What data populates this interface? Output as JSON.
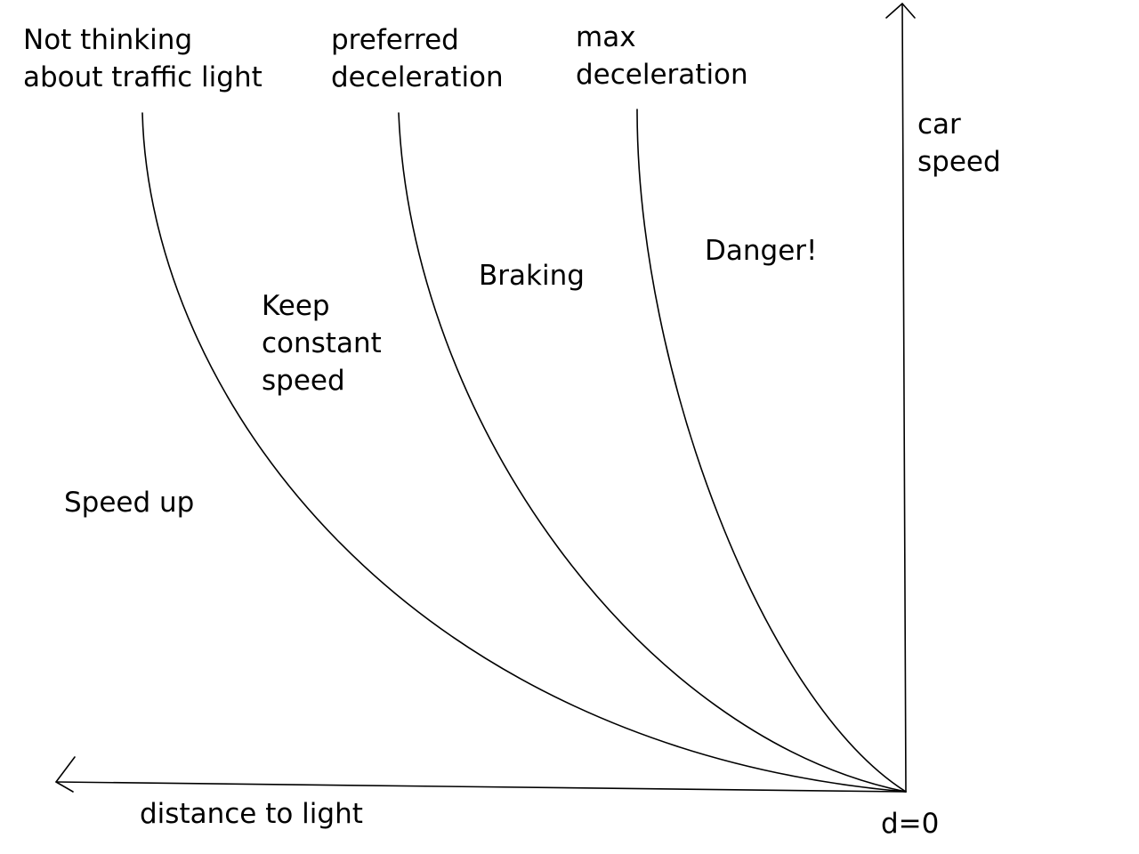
{
  "curves": {
    "not_thinking": [
      "Not thinking",
      "about traffic light"
    ],
    "preferred": [
      "preferred",
      "deceleration"
    ],
    "max": [
      "max",
      "deceleration"
    ]
  },
  "regions": {
    "speed_up": "Speed up",
    "keep_constant": [
      "Keep",
      "constant",
      "speed"
    ],
    "braking": "Braking",
    "danger": "Danger!"
  },
  "axes": {
    "y_label": [
      "car",
      "speed"
    ],
    "x_label": "distance to light",
    "origin_label": "d=0"
  },
  "colors": {
    "ink": "#000000",
    "background": "#ffffff"
  }
}
